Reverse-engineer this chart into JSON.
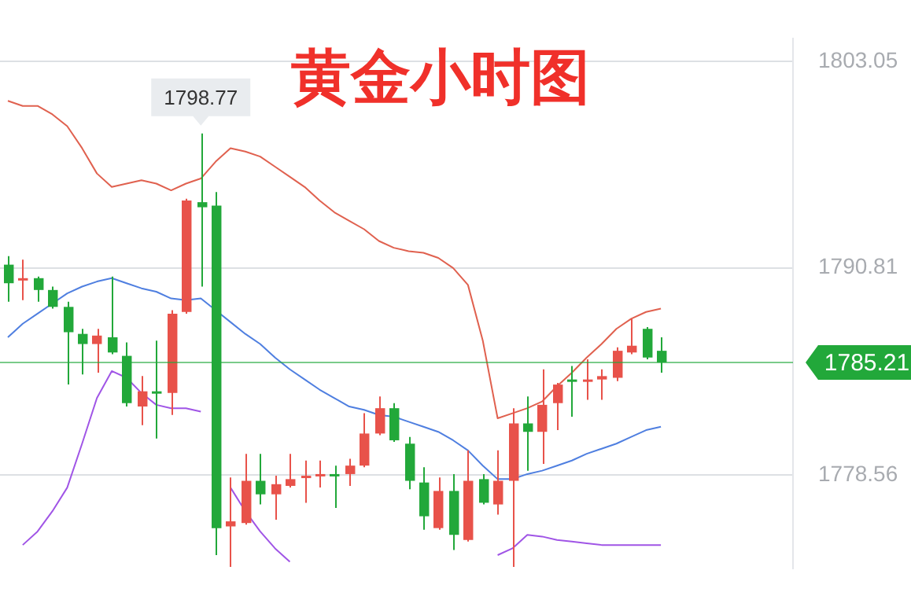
{
  "chart_data": {
    "type": "candlestick",
    "title": "黄金小时图",
    "categories": [
      null,
      null,
      null,
      null,
      null,
      null,
      null,
      null,
      null,
      null,
      null,
      null,
      null,
      null,
      null,
      null,
      null,
      null,
      null,
      null,
      null,
      null,
      null,
      null,
      null,
      null,
      null,
      null,
      null,
      null,
      null,
      null,
      null,
      null,
      null,
      null,
      null,
      null,
      null,
      null,
      null,
      null,
      null,
      null,
      null
    ],
    "ohlc": [
      [
        1791.0,
        1791.5,
        1788.8,
        1789.9
      ],
      [
        1790.1,
        1791.3,
        1788.9,
        1790.2
      ],
      [
        1790.2,
        1790.3,
        1788.8,
        1789.5
      ],
      [
        1789.5,
        1789.7,
        1788.4,
        1788.5
      ],
      [
        1788.5,
        1788.8,
        1783.9,
        1787.0
      ],
      [
        1786.9,
        1787.2,
        1784.5,
        1786.3
      ],
      [
        1786.3,
        1787.2,
        1784.6,
        1786.8
      ],
      [
        1786.7,
        1790.3,
        1785.7,
        1785.8
      ],
      [
        1785.6,
        1786.4,
        1782.6,
        1782.8
      ],
      [
        1782.6,
        1784.4,
        1781.5,
        1783.5
      ],
      [
        1783.5,
        1786.5,
        1780.7,
        1783.4
      ],
      [
        1783.4,
        1788.3,
        1782.1,
        1788.1
      ],
      [
        1788.2,
        1794.9,
        1788.1,
        1794.8
      ],
      [
        1794.7,
        1798.77,
        1789.7,
        1794.4
      ],
      [
        1794.5,
        1795.3,
        1773.8,
        1775.4
      ],
      [
        1775.5,
        1778.4,
        1773.1,
        1775.8
      ],
      [
        1775.7,
        1779.8,
        1775.6,
        1778.2
      ],
      [
        1778.2,
        1779.8,
        1776.8,
        1777.4
      ],
      [
        1777.4,
        1778.5,
        1775.9,
        1778.0
      ],
      [
        1777.9,
        1779.8,
        1777.8,
        1778.3
      ],
      [
        1778.4,
        1779.4,
        1776.9,
        1778.5
      ],
      [
        1778.5,
        1779.4,
        1777.8,
        1778.6
      ],
      [
        1778.6,
        1779.1,
        1776.6,
        1778.5
      ],
      [
        1778.6,
        1779.5,
        1777.9,
        1779.1
      ],
      [
        1779.1,
        1782.2,
        1779.0,
        1781.0
      ],
      [
        1781.0,
        1783.2,
        1780.9,
        1782.5
      ],
      [
        1782.5,
        1782.8,
        1780.5,
        1780.6
      ],
      [
        1780.4,
        1780.8,
        1777.7,
        1778.2
      ],
      [
        1778.1,
        1779.0,
        1775.3,
        1776.1
      ],
      [
        1775.4,
        1778.4,
        1775.3,
        1777.6
      ],
      [
        1777.6,
        1778.6,
        1774.1,
        1775.0
      ],
      [
        1774.7,
        1780.0,
        1774.6,
        1778.2
      ],
      [
        1778.3,
        1778.6,
        1776.8,
        1776.9
      ],
      [
        1776.8,
        1780.0,
        1776.2,
        1778.2
      ],
      [
        1778.2,
        1782.5,
        1773.1,
        1781.6
      ],
      [
        1781.6,
        1783.2,
        1778.8,
        1781.1
      ],
      [
        1781.1,
        1784.8,
        1779.2,
        1782.7
      ],
      [
        1782.8,
        1784.0,
        1781.2,
        1783.9
      ],
      [
        1784.2,
        1785.0,
        1782.0,
        1784.1
      ],
      [
        1784.1,
        1785.4,
        1783.0,
        1784.2
      ],
      [
        1784.2,
        1784.8,
        1783.0,
        1784.4
      ],
      [
        1784.3,
        1786.1,
        1784.1,
        1785.9
      ],
      [
        1785.8,
        1787.8,
        1785.7,
        1786.2
      ],
      [
        1787.2,
        1787.3,
        1785.4,
        1785.5
      ],
      [
        1785.9,
        1786.7,
        1784.6,
        1785.21
      ]
    ],
    "colors": [
      "#22a83a",
      "#e8524a",
      "#22a83a",
      "#22a83a",
      "#22a83a",
      "#22a83a",
      "#e8524a",
      "#22a83a",
      "#22a83a",
      "#e8524a",
      "#22a83a",
      "#e8524a",
      "#e8524a",
      "#22a83a",
      "#22a83a",
      "#e8524a",
      "#e8524a",
      "#22a83a",
      "#e8524a",
      "#e8524a",
      "#e8524a",
      "#e8524a",
      "#22a83a",
      "#e8524a",
      "#e8524a",
      "#e8524a",
      "#22a83a",
      "#22a83a",
      "#22a83a",
      "#e8524a",
      "#22a83a",
      "#e8524a",
      "#22a83a",
      "#e8524a",
      "#e8524a",
      "#22a83a",
      "#e8524a",
      "#e8524a",
      "#22a83a",
      "#e8524a",
      "#e8524a",
      "#e8524a",
      "#e8524a",
      "#22a83a",
      "#22a83a"
    ],
    "series": [
      {
        "type": "line",
        "color": "#e0614f",
        "values": [
          1800.7,
          1800.4,
          1800.4,
          1799.9,
          1799.2,
          1797.9,
          1796.4,
          1795.6,
          1795.8,
          1796.0,
          1795.8,
          1795.4,
          1795.8,
          1796.1,
          1797.1,
          1797.9,
          1797.7,
          1797.4,
          1796.8,
          1796.2,
          1795.6,
          1794.8,
          1794.1,
          1793.6,
          1793.1,
          1792.4,
          1792.0,
          1791.8,
          1791.7,
          1791.4,
          1790.8,
          1789.8,
          1786.5,
          1781.9,
          1782.2,
          1782.5,
          1782.9,
          1783.8,
          1784.6,
          1785.5,
          1786.3,
          1787.2,
          1787.8,
          1788.2,
          1788.4
        ]
      },
      {
        "type": "line",
        "color": "#4f7fe0",
        "values": [
          1786.7,
          1787.5,
          1788.1,
          1788.7,
          1789.3,
          1789.7,
          1790.0,
          1790.2,
          1789.9,
          1789.6,
          1789.4,
          1789.0,
          1788.9,
          1789.0,
          1788.3,
          1787.6,
          1786.9,
          1786.3,
          1785.5,
          1784.8,
          1784.2,
          1783.6,
          1783.1,
          1782.6,
          1782.4,
          1782.1,
          1782.0,
          1781.7,
          1781.4,
          1781.1,
          1780.6,
          1780.0,
          1779.1,
          1778.3,
          1778.3,
          1778.6,
          1778.8,
          1779.1,
          1779.4,
          1779.8,
          1780.1,
          1780.4,
          1780.8,
          1781.2,
          1781.4
        ]
      },
      {
        "type": "line",
        "color": "#a055e6",
        "values": [
          null,
          1774.4,
          1775.2,
          1776.4,
          1777.8,
          1780.4,
          1783.1,
          1784.7,
          1784.3,
          1783.4,
          1782.7,
          1782.5,
          1782.5,
          1782.3,
          null,
          1777.8,
          1776.4,
          1775.2,
          1774.2,
          1773.4,
          null,
          null,
          null,
          null,
          null,
          null,
          null,
          null,
          null,
          null,
          null,
          null,
          null,
          1773.8,
          1774.2,
          1775.0,
          1774.9,
          1774.7,
          1774.6,
          1774.5,
          1774.4,
          1774.4,
          1774.4,
          1774.4,
          1774.4
        ]
      }
    ],
    "ylim": [
      1773,
      1804.4
    ],
    "yticks": [
      1778.56,
      1790.81,
      1803.05
    ],
    "grid": "y",
    "legend": false,
    "marker": "none",
    "line_style": "solid",
    "ref_lines": [
      {
        "axis": "y",
        "value": 1785.21,
        "label": "1785.21",
        "color": "#22a83a"
      }
    ],
    "annotations": [
      {
        "text": "1798.77",
        "y": 1798.77
      }
    ]
  }
}
